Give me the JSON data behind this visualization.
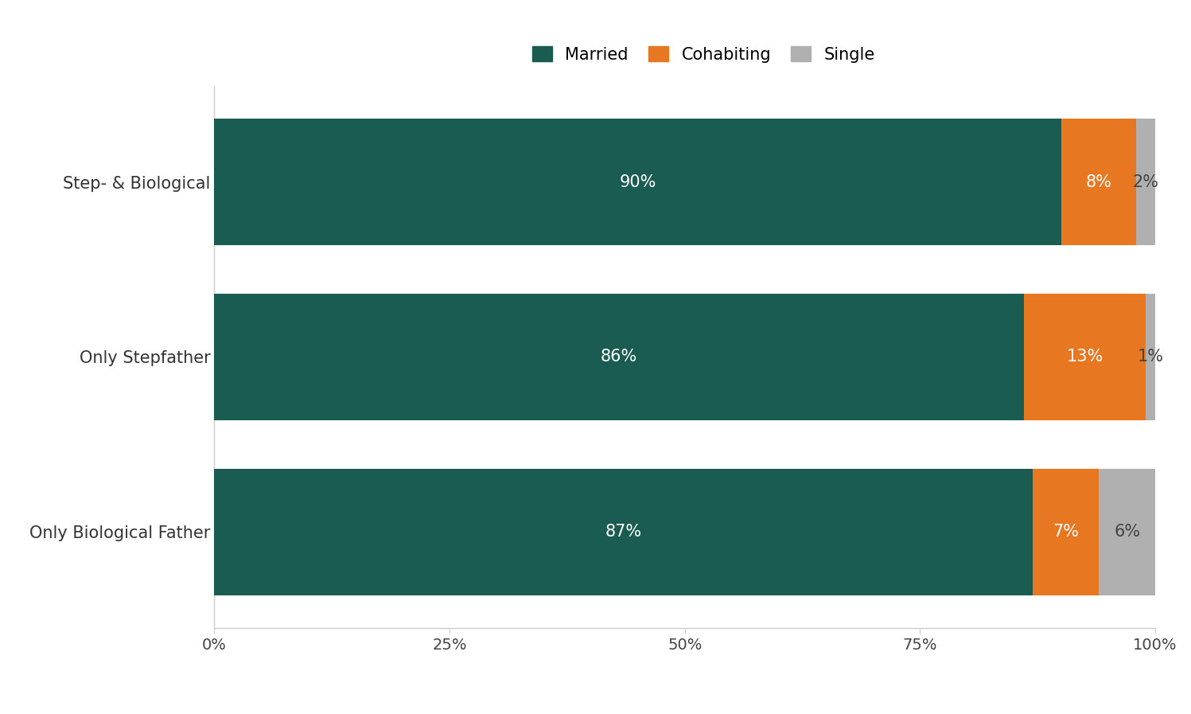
{
  "categories": [
    "Only Biological Father",
    "Only Stepfather",
    "Step- & Biological"
  ],
  "married": [
    87,
    86,
    90
  ],
  "cohabiting": [
    7,
    13,
    8
  ],
  "single": [
    6,
    1,
    2
  ],
  "married_color": "#1a5c52",
  "cohabiting_color": "#e87722",
  "single_color": "#b0b0b0",
  "married_label": "Married",
  "cohabiting_label": "Cohabiting",
  "single_label": "Single",
  "bar_height": 0.72,
  "xlim": [
    0,
    100
  ],
  "xticks": [
    0,
    25,
    50,
    75,
    100
  ],
  "xtick_labels": [
    "0%",
    "25%",
    "50%",
    "75%",
    "100%"
  ],
  "text_color_married": "white",
  "text_color_cohabiting": "white",
  "text_color_single": "#444444",
  "legend_fontsize": 15,
  "tick_fontsize": 14,
  "label_fontsize": 15,
  "bar_label_fontsize": 15,
  "background_color": "#ffffff",
  "spine_color": "#cccccc",
  "tick_color": "#cccccc"
}
